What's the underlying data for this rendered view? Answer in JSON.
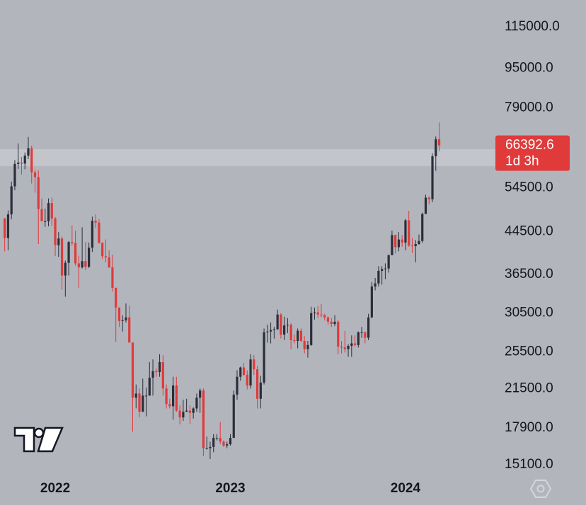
{
  "chart_data": {
    "type": "candlestick",
    "log_scale": true,
    "grid": false,
    "up_color": "#2a2e39",
    "down_color": "#e03a3a",
    "background": "#b3b5bd",
    "xlim": [
      -1.4,
      145.7
    ],
    "xticks": [
      {
        "value": 15,
        "label": "2022"
      },
      {
        "value": 67,
        "label": "2023"
      },
      {
        "value": 119,
        "label": "2024"
      }
    ],
    "ylim": [
      14375,
      130260
    ],
    "yticks": [
      {
        "value": 115000,
        "label": "115000.0"
      },
      {
        "value": 95000,
        "label": "95000.0"
      },
      {
        "value": 79000,
        "label": "79000.0"
      },
      {
        "value": 54500,
        "label": "54500.0"
      },
      {
        "value": 44500,
        "label": "44500.0"
      },
      {
        "value": 36500,
        "label": "36500.0"
      },
      {
        "value": 30500,
        "label": "30500.0"
      },
      {
        "value": 25500,
        "label": "25500.0"
      },
      {
        "value": 21500,
        "label": "21500.0"
      },
      {
        "value": 17900,
        "label": "17900.0"
      },
      {
        "value": 15100,
        "label": "15100.0"
      }
    ],
    "highlight_band": [
      60300,
      65200
    ],
    "countdown": "1d 3h",
    "open": [
      47300,
      43200,
      48200,
      54900,
      60900,
      61300,
      61000,
      63300,
      65500,
      58600,
      57300,
      49400,
      46700,
      46700,
      50800,
      47300,
      41800,
      43100,
      36300,
      38500,
      42400,
      42200,
      38400,
      37700,
      38800,
      37800,
      41300,
      46800,
      46400,
      42200,
      39700,
      39500,
      37700,
      34300,
      31300,
      29400,
      29500,
      29900,
      26600,
      20600,
      21000,
      19300,
      20800,
      20800,
      22600,
      23300,
      23200,
      24300,
      21500,
      20000,
      19800,
      21800,
      19400,
      18800,
      19300,
      19400,
      19200,
      19600,
      20600,
      21300,
      16300,
      16300,
      16400,
      17100,
      17100,
      16800,
      16500,
      16600,
      17100,
      20900,
      22700,
      23700,
      22900,
      21800,
      24600,
      23500,
      20500,
      22100,
      27900,
      28000,
      28200,
      28300,
      30300,
      27600,
      28800,
      28900,
      26900,
      26800,
      28100,
      26800,
      25800,
      26300,
      30500,
      30600,
      30300,
      30200,
      29900,
      29300,
      29000,
      29300,
      26100,
      26000,
      25800,
      26200,
      26500,
      26300,
      27900,
      27900,
      27200,
      29900,
      34500,
      35000,
      37100,
      37400,
      37500,
      39900,
      43800,
      41400,
      42900,
      42300,
      46900,
      41700,
      41600,
      42000,
      42600,
      48300,
      52100,
      51700,
      63100,
      68300
    ],
    "high": [
      47400,
      49100,
      56100,
      62000,
      67000,
      62900,
      64200,
      69000,
      66300,
      59200,
      59100,
      51900,
      49500,
      51900,
      52100,
      47600,
      44400,
      43500,
      38900,
      42600,
      45800,
      44700,
      39800,
      45400,
      42400,
      42300,
      47700,
      48200,
      47200,
      42400,
      42900,
      40800,
      40000,
      34300,
      31300,
      30200,
      31900,
      31600,
      26600,
      21900,
      21500,
      22500,
      21600,
      24300,
      24600,
      23600,
      25200,
      25100,
      21900,
      20500,
      22700,
      22700,
      19900,
      20400,
      20500,
      19900,
      19700,
      21000,
      21500,
      21500,
      17200,
      16800,
      17400,
      17400,
      18400,
      16900,
      16800,
      17400,
      21300,
      23400,
      23800,
      24200,
      23400,
      25200,
      25100,
      23900,
      22800,
      28400,
      28900,
      29200,
      28600,
      31000,
      30500,
      30000,
      29800,
      29100,
      27600,
      28400,
      28400,
      27400,
      26800,
      31400,
      31300,
      31500,
      31800,
      30400,
      30000,
      29800,
      30200,
      29500,
      26800,
      28100,
      26400,
      27500,
      27500,
      28000,
      28600,
      28000,
      30400,
      35200,
      35900,
      37900,
      37900,
      38400,
      40000,
      44700,
      43900,
      44400,
      43800,
      47200,
      49000,
      43200,
      42800,
      43900,
      48600,
      52800,
      52400,
      64000,
      69200,
      73800
    ],
    "low": [
      40600,
      40800,
      47100,
      53900,
      59500,
      58000,
      59400,
      62300,
      55600,
      53300,
      42000,
      46700,
      45500,
      45600,
      45700,
      39700,
      39600,
      34000,
      32900,
      36300,
      41700,
      38000,
      34300,
      37500,
      37200,
      37600,
      40500,
      45200,
      42100,
      39200,
      38600,
      37600,
      33700,
      26700,
      28600,
      28000,
      29200,
      26600,
      17600,
      19600,
      18800,
      19300,
      18900,
      20800,
      20800,
      22700,
      22700,
      20800,
      19600,
      19600,
      18600,
      19300,
      18200,
      18500,
      19300,
      18200,
      18700,
      19300,
      19200,
      15700,
      16200,
      15500,
      16000,
      16900,
      16600,
      16400,
      16300,
      16500,
      17100,
      20400,
      22300,
      22800,
      21400,
      21500,
      22900,
      19600,
      19600,
      21900,
      26600,
      26500,
      27100,
      28200,
      27100,
      26900,
      27800,
      25800,
      26500,
      25900,
      26700,
      25300,
      24800,
      26200,
      29600,
      29800,
      29900,
      29500,
      28900,
      28600,
      28700,
      25200,
      25300,
      25400,
      24900,
      24900,
      26100,
      26000,
      27200,
      26500,
      26900,
      29800,
      33900,
      34500,
      34800,
      35700,
      36800,
      39900,
      40200,
      40600,
      41500,
      40800,
      41500,
      40300,
      38600,
      41900,
      42300,
      48300,
      50500,
      51000,
      59000,
      64600
    ],
    "close": [
      43200,
      48200,
      54900,
      60900,
      61300,
      61000,
      63300,
      65500,
      58600,
      57300,
      49400,
      46700,
      46700,
      50800,
      47300,
      41800,
      43100,
      36300,
      38500,
      42400,
      42200,
      38400,
      37700,
      38800,
      37800,
      41300,
      46800,
      46400,
      42200,
      39700,
      39500,
      37700,
      34300,
      31300,
      29400,
      29500,
      29900,
      26600,
      20600,
      21000,
      19300,
      20800,
      20800,
      22600,
      23300,
      23200,
      24300,
      21500,
      20000,
      19800,
      21800,
      19400,
      18800,
      19300,
      19400,
      19200,
      19600,
      20600,
      21300,
      16300,
      16300,
      16400,
      17100,
      17100,
      16800,
      16500,
      16600,
      17100,
      20900,
      22700,
      23700,
      22900,
      21800,
      24600,
      23500,
      20500,
      22100,
      27900,
      28000,
      28200,
      28300,
      30300,
      27600,
      28800,
      28900,
      26900,
      26800,
      28100,
      26800,
      25800,
      26300,
      30500,
      30600,
      30300,
      30200,
      29900,
      29300,
      29000,
      29300,
      26100,
      26000,
      25800,
      26200,
      26500,
      26300,
      27900,
      27900,
      27200,
      29900,
      34500,
      35000,
      37100,
      37400,
      37500,
      39900,
      43800,
      41400,
      42900,
      42300,
      46900,
      41700,
      41600,
      42000,
      42600,
      48300,
      52100,
      51700,
      63100,
      68300,
      66392.6
    ]
  }
}
